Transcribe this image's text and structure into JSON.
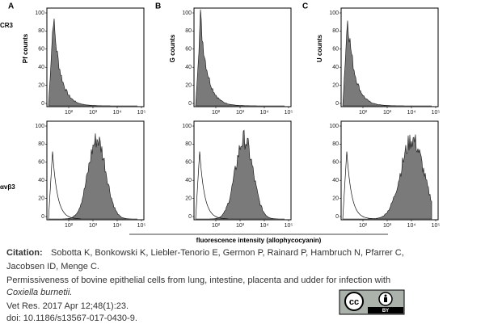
{
  "panels": {
    "columns": [
      "A",
      "B",
      "C"
    ],
    "rows": [
      {
        "label": "CR3",
        "ylabels": [
          "Pf counts",
          "G counts",
          "U counts"
        ]
      },
      {
        "label": "αvβ3"
      }
    ],
    "yticks": [
      "0",
      "20",
      "40",
      "60",
      "80",
      "100"
    ],
    "xticks": [
      "10²",
      "10³",
      "10⁴",
      "10⁵"
    ],
    "xlabel": "fluorescence intensity (allophycocyanin)"
  },
  "citation": {
    "label": "Citation:",
    "authors": "Sobotta K, Bonkowski K, Liebler-Tenorio E, Germon P, Rainard P, Hambruch N, Pfarrer C,",
    "authors2": "Jacobsen ID, Menge C.",
    "title": "Permissiveness of bovine epithelial cells from lung, intestine, placenta and udder for infection with",
    "species": "Coxiella burnetii.",
    "journal": "Vet Res. 2017 Apr 12;48(1):23.",
    "doi": "doi: 10.1186/s13567-017-0430-9."
  },
  "badge": {
    "cc": "cc",
    "by": "BY"
  }
}
